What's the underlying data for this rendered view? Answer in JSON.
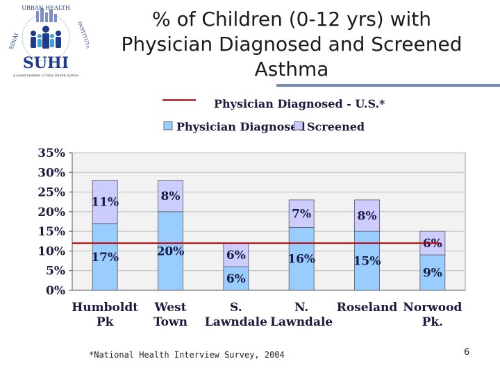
{
  "slide": {
    "title_lines": [
      "% of Children (0-12 yrs) with",
      "Physician Diagnosed and Screened",
      "Asthma"
    ],
    "footnote": "*National Health Interview Survey, 2004",
    "page_number": "6"
  },
  "logo": {
    "arc_top": "URBAN HEALTH",
    "arc_left": "SINAI",
    "arc_right": "INSTITUTE",
    "acronym": "SUHI",
    "tagline": "A proud member of Sinai Health System"
  },
  "colors": {
    "diagnosed": "#99ccff",
    "screened": "#ccccff",
    "reference": "#cc0000",
    "plot_bg": "#f2f2f2",
    "gridline": "#ffffff",
    "label": "#1a1a40"
  },
  "chart_data": {
    "type": "bar",
    "stacked": true,
    "title": "% of Children (0-12 yrs) with Physician Diagnosed and Screened Asthma",
    "categories": [
      [
        "Humboldt",
        "Pk"
      ],
      [
        "West",
        "Town"
      ],
      [
        "S.",
        "Lawndale"
      ],
      [
        "N.",
        "Lawndale"
      ],
      [
        "Roseland"
      ],
      [
        "Norwood",
        "Pk."
      ]
    ],
    "series": [
      {
        "name": "Physician Diagnosed",
        "values": [
          17,
          20,
          6,
          16,
          15,
          9
        ]
      },
      {
        "name": "Screened",
        "values": [
          11,
          8,
          6,
          7,
          8,
          6
        ]
      }
    ],
    "data_labels": {
      "Physician Diagnosed": [
        "17%",
        "20%",
        "6%",
        "16%",
        "15%",
        "9%"
      ],
      "Screened": [
        "11%",
        "8%",
        "6%",
        "7%",
        "8%",
        "6%"
      ]
    },
    "reference_line": {
      "name": "Physician Diagnosed - U.S.*",
      "value": 12
    },
    "y_ticks": [
      0,
      5,
      10,
      15,
      20,
      25,
      30,
      35
    ],
    "y_tick_labels": [
      "0%",
      "5%",
      "10%",
      "15%",
      "20%",
      "25%",
      "30%",
      "35%"
    ],
    "ylim": [
      0,
      35
    ],
    "xlabel": "",
    "ylabel": "",
    "legend": "top-center",
    "grid": true
  }
}
